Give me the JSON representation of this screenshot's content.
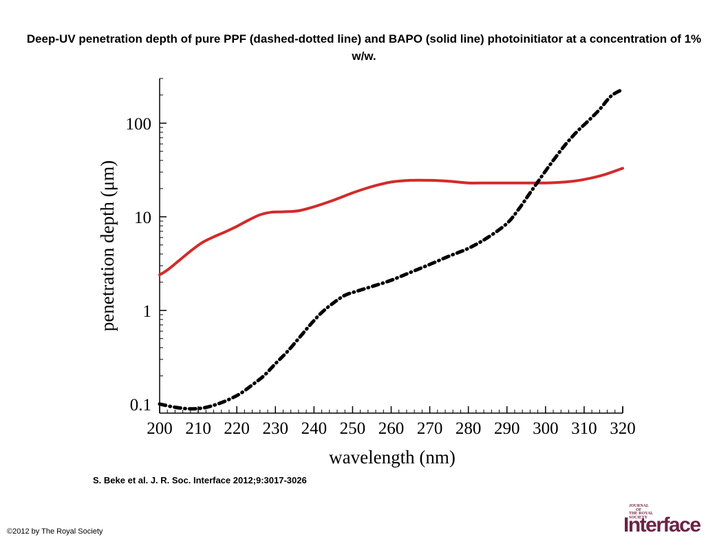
{
  "title": "Deep-UV penetration depth of pure PPF (dashed-dotted line) and BAPO (solid line) photoinitiator at a concentration of 1% w/w.",
  "citation": "S. Beke et al. J. R. Soc. Interface 2012;9:3017-3026",
  "copyright": "©2012 by The Royal Society",
  "logo": {
    "line1": "JOURNAL",
    "line2": "OF",
    "line3": "THE ROYAL",
    "line4": "SOCIETY",
    "main": "Interface",
    "color": "#6b2346"
  },
  "chart_data": {
    "type": "line",
    "xlabel": "wavelength (nm)",
    "ylabel": "penetration depth (μm)",
    "xlim": [
      200,
      320
    ],
    "ylim": [
      0.08,
      300
    ],
    "yscale": "log",
    "grid": false,
    "x_ticks": [
      "200",
      "210",
      "220",
      "230",
      "240",
      "250",
      "260",
      "270",
      "280",
      "290",
      "300",
      "310",
      "320"
    ],
    "y_ticks": [
      {
        "value": 0.1,
        "label": "0.1"
      },
      {
        "value": 1,
        "label": "1"
      },
      {
        "value": 10,
        "label": "10"
      },
      {
        "value": 100,
        "label": "100"
      }
    ],
    "series": [
      {
        "style": "solid",
        "color": "#d42a2a",
        "x": [
          200,
          202,
          205,
          208,
          211,
          214,
          217,
          220,
          223,
          226,
          229,
          232,
          236,
          240,
          245,
          250,
          255,
          260,
          265,
          270,
          275,
          280,
          285,
          290,
          295,
          300,
          305,
          310,
          315,
          320
        ],
        "y": [
          2.4,
          2.7,
          3.4,
          4.3,
          5.3,
          6.1,
          6.9,
          7.9,
          9.2,
          10.5,
          11.2,
          11.3,
          11.6,
          12.8,
          15,
          18,
          21,
          23.5,
          24.5,
          24.5,
          24,
          23,
          23,
          23,
          23,
          23,
          23.5,
          25,
          28,
          33
        ]
      },
      {
        "style": "dashdot",
        "color": "#000000",
        "x": [
          200,
          203,
          206,
          209,
          212,
          215,
          218,
          221,
          224,
          227,
          230,
          233,
          236,
          239,
          242,
          245,
          248,
          251,
          255,
          260,
          265,
          270,
          275,
          280,
          285,
          290,
          293,
          296,
          299,
          302,
          305,
          308,
          311,
          314,
          317,
          320
        ],
        "y": [
          0.1,
          0.094,
          0.09,
          0.089,
          0.092,
          0.1,
          0.112,
          0.13,
          0.16,
          0.2,
          0.27,
          0.36,
          0.5,
          0.7,
          0.95,
          1.2,
          1.45,
          1.6,
          1.8,
          2.1,
          2.55,
          3.1,
          3.8,
          4.6,
          6,
          8.5,
          12,
          18,
          27,
          40,
          58,
          80,
          105,
          140,
          195,
          230
        ]
      }
    ]
  }
}
